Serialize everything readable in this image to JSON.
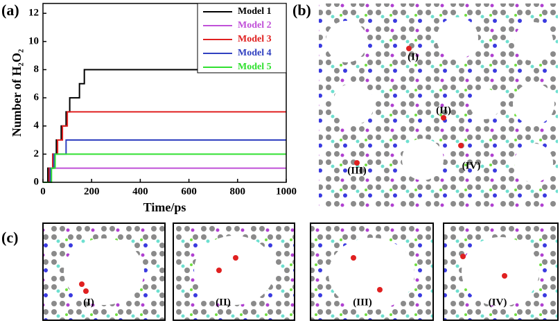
{
  "chart_data": {
    "type": "line",
    "xlabel": "Time/ps",
    "ylabel": "Number of H₂O₂",
    "xlim": [
      0,
      1000
    ],
    "ylim": [
      0,
      12.7
    ],
    "xticks": [
      0,
      200,
      400,
      600,
      800,
      1000
    ],
    "yticks": [
      0,
      2,
      4,
      6,
      8,
      10,
      12
    ],
    "legend": "top-right",
    "series": [
      {
        "name": "Model 1",
        "color": "#000000",
        "x": [
          0,
          20,
          20,
          40,
          40,
          55,
          55,
          75,
          75,
          95,
          95,
          110,
          110,
          150,
          150,
          170,
          170,
          1000
        ],
        "values": [
          0,
          0,
          1,
          1,
          2,
          2,
          3,
          3,
          4,
          4,
          5,
          5,
          6,
          6,
          7,
          7,
          8,
          8
        ]
      },
      {
        "name": "Model 2",
        "color": "#c050d8",
        "x": [
          0,
          30,
          30,
          1000
        ],
        "values": [
          0,
          0,
          1,
          1
        ]
      },
      {
        "name": "Model 3",
        "color": "#e02020",
        "x": [
          0,
          25,
          25,
          40,
          40,
          60,
          60,
          80,
          80,
          100,
          100,
          1000
        ],
        "values": [
          0,
          0,
          1,
          1,
          2,
          2,
          3,
          3,
          4,
          4,
          5,
          5
        ]
      },
      {
        "name": "Model 4",
        "color": "#3040c0",
        "x": [
          0,
          30,
          30,
          45,
          45,
          95,
          95,
          1000
        ],
        "values": [
          0,
          0,
          1,
          1,
          2,
          2,
          3,
          3
        ]
      },
      {
        "name": "Model 5",
        "color": "#30e030",
        "x": [
          0,
          35,
          35,
          50,
          50,
          1000
        ],
        "values": [
          0,
          0,
          1,
          1,
          2,
          2
        ]
      }
    ]
  },
  "panels": {
    "a": "(a)",
    "b": "(b)",
    "c": "(c)",
    "b_sites": [
      "(I)",
      "(II)",
      "(III)",
      "(IV)"
    ],
    "c_sites": [
      "(I)",
      "(II)",
      "(III)",
      "(IV)"
    ]
  }
}
